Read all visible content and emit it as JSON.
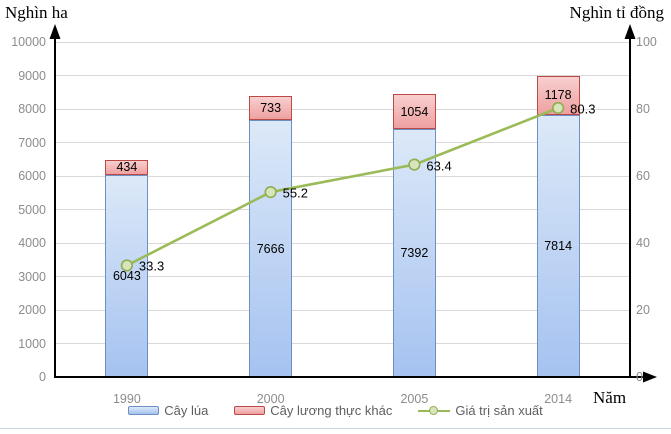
{
  "chart_data": {
    "type": "combo",
    "categories": [
      "1990",
      "2000",
      "2005",
      "2014"
    ],
    "series": [
      {
        "name": "Cây lúa",
        "type": "bar",
        "axis": "left",
        "values": [
          6043,
          7666,
          7392,
          7814
        ],
        "fill_top": "#dce9f8",
        "fill_bottom": "#a5c2f0",
        "border": "#6e8fc4"
      },
      {
        "name": "Cây lương thực khác",
        "type": "bar",
        "axis": "left",
        "stacked_on": "Cây lúa",
        "values": [
          434,
          733,
          1054,
          1178
        ],
        "fill_top": "#f8cfcf",
        "fill_bottom": "#efa0a0",
        "border": "#bb4a47"
      },
      {
        "name": "Giá trị sản xuất",
        "type": "line",
        "axis": "right",
        "values": [
          33.3,
          55.2,
          63.4,
          80.3
        ],
        "color": "#9bbb59",
        "marker_fill": "#d8e4bc",
        "marker_border": "#8fae4f"
      }
    ],
    "left_axis": {
      "title": "Nghìn ha",
      "min": 0,
      "max": 10000,
      "step": 1000,
      "tick_labels": [
        "0",
        "1000",
        "2000",
        "3000",
        "4000",
        "5000",
        "6000",
        "7000",
        "8000",
        "9000",
        "10000"
      ]
    },
    "right_axis": {
      "title": "Nghìn tỉ đồng",
      "min": 0,
      "max": 100,
      "label_step": 20,
      "grid_step": 10,
      "tick_labels": [
        "0",
        "20",
        "40",
        "60",
        "80",
        "100"
      ]
    },
    "x_axis": {
      "title": "Năm"
    },
    "legend_position": "bottom",
    "grid": true,
    "colors": {
      "gridline": "#d9d9d9",
      "axis_line": "#000000",
      "tick_text": "#8c8c8c",
      "category_text": "#8c8c8c",
      "data_label_text": "#000000",
      "legend_text": "#5f5f5f"
    }
  }
}
